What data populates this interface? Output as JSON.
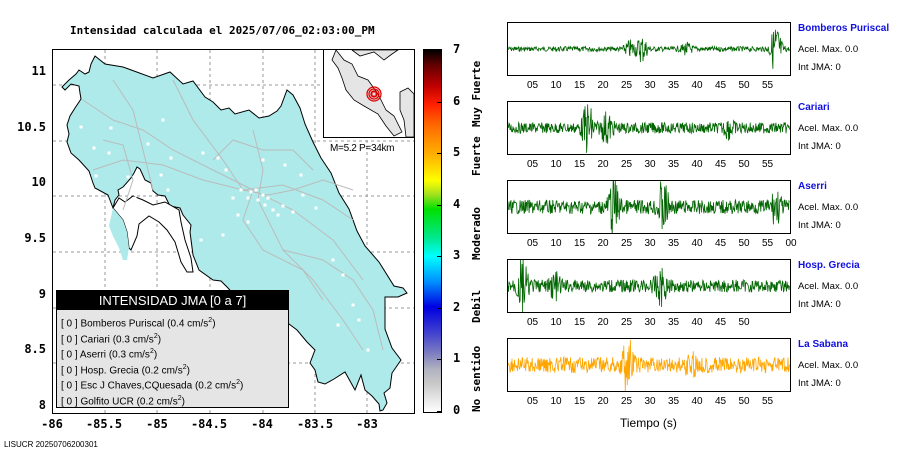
{
  "title": "Intensidad calculada el 2025/07/06_02:03:00_PM",
  "footer": "LISUCR 20250706200301",
  "map": {
    "y_ticks": [
      "11",
      "10.5",
      "10",
      "9.5",
      "9",
      "8.5",
      "8"
    ],
    "x_ticks": [
      "-86",
      "-85.5",
      "-85",
      "-84.5",
      "-84",
      "-83.5",
      "-83"
    ],
    "lat_range": [
      8,
      11.2
    ],
    "lon_range": [
      -86,
      -82.55
    ],
    "land_color": "#aeeaea",
    "road_color": "#bbbbbb",
    "inset_label": "M=5.2 P=34km",
    "epicenter_color": "#e00000"
  },
  "legend": {
    "title": "INTENSIDAD JMA [0 a 7]",
    "rows": [
      {
        "int": "[ 0 ]",
        "station": "Bomberos Puriscal",
        "acel": "(0.4 cm/s",
        "sup": "2",
        "close": ")"
      },
      {
        "int": "[ 0 ]",
        "station": "Cariari",
        "acel": "(0.3 cm/s",
        "sup": "2",
        "close": ")"
      },
      {
        "int": "[ 0 ]",
        "station": "Aserri",
        "acel": "(0.3 cm/s",
        "sup": "2",
        "close": ")"
      },
      {
        "int": "[ 0 ]",
        "station": "Hosp. Grecia",
        "acel": "(0.2 cm/s",
        "sup": "2",
        "close": ")"
      },
      {
        "int": "[ 0 ]",
        "station": "Esc J Chaves,CQuesada",
        "acel": "(0.2 cm/s",
        "sup": "2",
        "close": ")"
      },
      {
        "int": "[ 0 ]",
        "station": "Golfito UCR",
        "acel": "(0.2 cm/s",
        "sup": "2",
        "close": ")"
      }
    ]
  },
  "colorbar": {
    "ticks": [
      "7",
      "6",
      "5",
      "4",
      "3",
      "2",
      "1",
      "0"
    ],
    "labels": [
      "Muy Fuerte",
      "Fuerte",
      "Moderado",
      "Debil",
      "No sentido"
    ],
    "range": [
      0,
      7
    ]
  },
  "chart_data": {
    "type": "line",
    "title": "Intensidad calculada el 2025/07/06_02:03:00_PM",
    "xlabel": "Tiempo (s)",
    "series": [
      {
        "name": "Bomberos Puriscal",
        "acel_max": "Acel. Max. 0.0",
        "int_jma": "Int JMA: 0",
        "color": "#006400",
        "x_ticks": [
          "05",
          "10",
          "15",
          "20",
          "25",
          "30",
          "35",
          "40",
          "45",
          "50",
          "55"
        ],
        "bursts": [
          [
            26,
            0.3
          ],
          [
            28.5,
            0.5
          ],
          [
            38,
            0.2
          ],
          [
            57,
            1.0
          ]
        ],
        "noise": 0.1
      },
      {
        "name": "Cariari",
        "acel_max": "Acel. Max. 0.0",
        "int_jma": "Int JMA: 0",
        "color": "#006400",
        "x_ticks": [
          "05",
          "10",
          "15",
          "20",
          "25",
          "30",
          "35",
          "40",
          "45",
          "50",
          "55"
        ],
        "bursts": [
          [
            17,
            0.95
          ],
          [
            21,
            0.55
          ],
          [
            47,
            0.3
          ]
        ],
        "noise": 0.22
      },
      {
        "name": "Aserri",
        "acel_max": "Acel. Max. 0.0",
        "int_jma": "Int JMA: 0",
        "color": "#006400",
        "x_ticks": [
          "05",
          "10",
          "15",
          "20",
          "25",
          "30",
          "35",
          "40",
          "45",
          "50",
          "55",
          "00"
        ],
        "bursts": [
          [
            22.5,
            1.0
          ],
          [
            33,
            0.95
          ],
          [
            57,
            0.55
          ]
        ],
        "noise": 0.28
      },
      {
        "name": "Hosp. Grecia",
        "acel_max": "Acel. Max. 0.0",
        "int_jma": "Int JMA: 0",
        "color": "#006400",
        "x_ticks": [
          "05",
          "10",
          "15",
          "20",
          "25",
          "30",
          "35",
          "40",
          "45",
          "50"
        ],
        "bursts": [
          [
            3,
            1.0
          ],
          [
            10,
            0.4
          ],
          [
            32.5,
            0.8
          ]
        ],
        "noise": 0.25
      },
      {
        "name": "La Sabana",
        "acel_max": "Acel. Max. 0.0",
        "int_jma": "Int JMA: 0",
        "color": "#ffa500",
        "x_ticks": [
          "05",
          "10",
          "15",
          "20",
          "25",
          "30",
          "35",
          "40",
          "45",
          "50",
          "55"
        ],
        "bursts": [
          [
            25.5,
            1.0
          ],
          [
            39,
            0.4
          ]
        ],
        "noise": 0.32
      }
    ],
    "xlim": [
      0,
      60
    ]
  }
}
